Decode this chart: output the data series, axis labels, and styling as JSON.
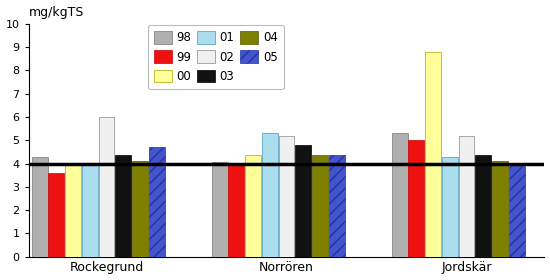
{
  "title": "mg/kgTS",
  "ylim": [
    0,
    10
  ],
  "yticks": [
    0,
    1,
    2,
    3,
    4,
    5,
    6,
    7,
    8,
    9,
    10
  ],
  "background_line": 4.0,
  "stations": [
    "Rockegrund",
    "Norrören",
    "Jordskär"
  ],
  "years": [
    "98",
    "99",
    "00",
    "01",
    "02",
    "03",
    "04",
    "05"
  ],
  "data": {
    "Rockegrund": {
      "98": 4.3,
      "99": 3.6,
      "00": 4.0,
      "01": 4.0,
      "02": 6.0,
      "03": 4.35,
      "04": 4.1,
      "05": 4.7
    },
    "Norrören": {
      "98": 4.05,
      "99": 3.95,
      "00": 4.35,
      "01": 5.3,
      "02": 5.2,
      "03": 4.8,
      "04": 4.35,
      "05": 4.35
    },
    "Jordskär": {
      "98": 5.3,
      "99": 5.0,
      "00": 8.8,
      "01": 4.3,
      "02": 5.2,
      "03": 4.35,
      "04": 4.1,
      "05": 3.9
    }
  },
  "color_map": {
    "98": "#b0b0b0",
    "99": "#ee1111",
    "00": "#ffff99",
    "01": "#aaddee",
    "02": "#f0f0f0",
    "03": "#111111",
    "04": "#808000",
    "05": "#4455cc"
  },
  "hatch_map": {
    "98": "",
    "99": "",
    "00": "",
    "01": "",
    "02": "",
    "03": "",
    "04": "",
    "05": "///"
  },
  "edge_map": {
    "98": "#777777",
    "99": "#cc0000",
    "00": "#aaaa00",
    "01": "#4499bb",
    "02": "#888888",
    "03": "#000000",
    "04": "#555500",
    "05": "#2233aa"
  },
  "figure_width": 5.5,
  "figure_height": 2.8
}
